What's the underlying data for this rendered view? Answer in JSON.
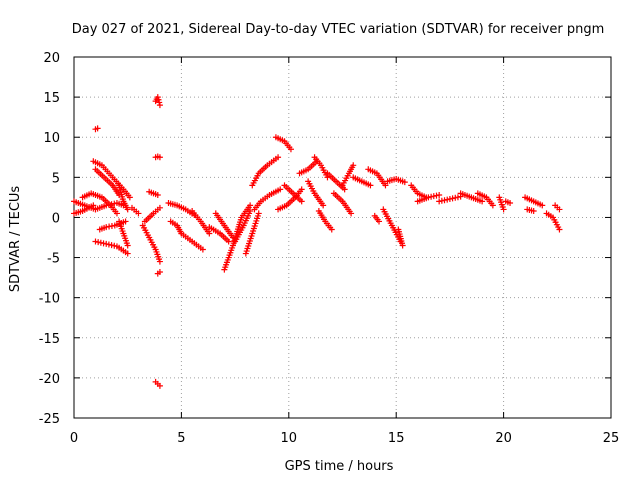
{
  "chart_data": {
    "type": "scatter",
    "title": "Day 027 of 2021, Sidereal Day-to-day VTEC variation (SDTVAR) for receiver pngm",
    "xlabel": "GPS time / hours",
    "ylabel": "SDTVAR / TECUs",
    "xlim": [
      0,
      25
    ],
    "ylim": [
      -25,
      20
    ],
    "xticks": [
      "0",
      "5",
      "10",
      "15",
      "20",
      "25"
    ],
    "yticks": [
      "20",
      "15",
      "10",
      "5",
      "0",
      "-5",
      "-10",
      "-15",
      "-20",
      "-25"
    ],
    "grid": true,
    "marker": "+",
    "color": "#ff0000",
    "tracks": [
      {
        "x": [
          0.0,
          0.5,
          1.0
        ],
        "y": [
          2.0,
          1.5,
          1.0
        ]
      },
      {
        "x": [
          0.0,
          0.4,
          0.9
        ],
        "y": [
          0.5,
          0.8,
          1.5
        ]
      },
      {
        "x": [
          0.4,
          0.8,
          1.3,
          1.7,
          2.0
        ],
        "y": [
          2.5,
          3.0,
          2.5,
          1.5,
          0.5
        ]
      },
      {
        "x": [
          1.0,
          1.5,
          2.0,
          2.3
        ],
        "y": [
          1.0,
          1.5,
          1.8,
          1.5
        ]
      },
      {
        "x": [
          0.9,
          1.3,
          1.8,
          2.3,
          2.6
        ],
        "y": [
          7.0,
          6.5,
          5.0,
          3.5,
          2.5
        ]
      },
      {
        "x": [
          1.0,
          1.4,
          1.8,
          2.1
        ],
        "y": [
          6.0,
          5.0,
          4.0,
          2.8
        ]
      },
      {
        "x": [
          1.2,
          1.5,
          1.9,
          2.4
        ],
        "y": [
          -1.5,
          -1.2,
          -1.0,
          -0.5
        ]
      },
      {
        "x": [
          1.0,
          1.5,
          2.0,
          2.5
        ],
        "y": [
          -3.0,
          -3.3,
          -3.6,
          -4.5
        ]
      },
      {
        "x": [
          2.1,
          2.3,
          2.5
        ],
        "y": [
          -0.5,
          -2.0,
          -3.5
        ]
      },
      {
        "x": [
          2.1,
          2.3,
          2.5
        ],
        "y": [
          4.0,
          2.0,
          1.0
        ]
      },
      {
        "x": [
          2.7,
          3.0
        ],
        "y": [
          1.2,
          0.5
        ]
      },
      {
        "x": [
          3.5,
          3.9
        ],
        "y": [
          3.2,
          2.8
        ]
      },
      {
        "x": [
          3.2,
          3.5,
          3.8,
          4.0
        ],
        "y": [
          -1.0,
          -2.5,
          -4.0,
          -5.5
        ]
      },
      {
        "x": [
          3.3,
          3.7,
          4.0
        ],
        "y": [
          -0.5,
          0.5,
          1.2
        ]
      },
      {
        "x": [
          3.8,
          3.9,
          4.0
        ],
        "y": [
          14.5,
          15.0,
          14.0
        ]
      },
      {
        "x": [
          3.8,
          3.9,
          4.0
        ],
        "y": [
          7.5,
          7.6,
          7.5
        ]
      },
      {
        "x": [
          3.9,
          4.0
        ],
        "y": [
          -7.0,
          -6.8
        ]
      },
      {
        "x": [
          3.8,
          4.0
        ],
        "y": [
          -20.5,
          -21.0
        ]
      },
      {
        "x": [
          1.0,
          1.1
        ],
        "y": [
          11.0,
          11.1
        ]
      },
      {
        "x": [
          4.4,
          4.8,
          5.2,
          5.6
        ],
        "y": [
          1.8,
          1.5,
          1.0,
          0.3
        ]
      },
      {
        "x": [
          4.5,
          4.8,
          5.0
        ],
        "y": [
          -0.5,
          -1.0,
          -2.0
        ]
      },
      {
        "x": [
          5.0,
          5.5,
          6.0
        ],
        "y": [
          -2.0,
          -3.0,
          -4.0
        ]
      },
      {
        "x": [
          5.5,
          5.9,
          6.3
        ],
        "y": [
          0.8,
          -0.5,
          -2.0
        ]
      },
      {
        "x": [
          6.3,
          6.8,
          7.2
        ],
        "y": [
          -1.2,
          -2.0,
          -3.0
        ]
      },
      {
        "x": [
          6.6,
          7.0,
          7.4
        ],
        "y": [
          0.5,
          -1.0,
          -2.5
        ]
      },
      {
        "x": [
          7.0,
          7.4,
          7.8,
          8.2
        ],
        "y": [
          -6.5,
          -3.5,
          0.0,
          1.5
        ]
      },
      {
        "x": [
          7.5,
          7.9,
          8.2
        ],
        "y": [
          -3.0,
          -1.0,
          0.8
        ]
      },
      {
        "x": [
          8.0,
          8.3,
          8.6
        ],
        "y": [
          -4.5,
          -2.0,
          0.5
        ]
      },
      {
        "x": [
          8.3,
          8.6,
          9.0,
          9.5
        ],
        "y": [
          4.0,
          5.5,
          6.5,
          7.5
        ]
      },
      {
        "x": [
          8.4,
          8.7,
          9.1,
          9.6
        ],
        "y": [
          1.0,
          2.0,
          2.8,
          3.5
        ]
      },
      {
        "x": [
          9.4,
          9.8,
          10.1
        ],
        "y": [
          10.0,
          9.5,
          8.5
        ]
      },
      {
        "x": [
          9.5,
          9.9,
          10.3,
          10.6
        ],
        "y": [
          1.0,
          1.5,
          2.5,
          3.5
        ]
      },
      {
        "x": [
          10.5,
          10.9,
          11.3
        ],
        "y": [
          5.5,
          6.0,
          7.0
        ]
      },
      {
        "x": [
          9.8,
          10.2,
          10.6
        ],
        "y": [
          4.0,
          3.0,
          2.0
        ]
      },
      {
        "x": [
          10.9,
          11.2,
          11.6
        ],
        "y": [
          4.5,
          3.0,
          1.5
        ]
      },
      {
        "x": [
          11.2,
          11.5,
          11.8
        ],
        "y": [
          7.5,
          6.5,
          5.0
        ]
      },
      {
        "x": [
          11.4,
          11.7,
          12.0
        ],
        "y": [
          0.8,
          -0.5,
          -1.5
        ]
      },
      {
        "x": [
          11.8,
          12.2,
          12.6
        ],
        "y": [
          5.5,
          4.5,
          3.5
        ]
      },
      {
        "x": [
          12.1,
          12.5,
          12.9
        ],
        "y": [
          3.0,
          2.0,
          0.5
        ]
      },
      {
        "x": [
          12.5,
          12.8,
          13.0
        ],
        "y": [
          4.0,
          5.5,
          6.5
        ]
      },
      {
        "x": [
          13.0,
          13.4,
          13.8
        ],
        "y": [
          5.0,
          4.5,
          4.0
        ]
      },
      {
        "x": [
          13.7,
          14.1,
          14.5
        ],
        "y": [
          6.0,
          5.5,
          4.0
        ]
      },
      {
        "x": [
          14.0,
          14.2
        ],
        "y": [
          0.2,
          -0.5
        ]
      },
      {
        "x": [
          14.4,
          14.8,
          15.2
        ],
        "y": [
          1.0,
          -1.0,
          -3.0
        ]
      },
      {
        "x": [
          14.6,
          15.0,
          15.4
        ],
        "y": [
          4.5,
          4.8,
          4.4
        ]
      },
      {
        "x": [
          15.1,
          15.3
        ],
        "y": [
          -1.5,
          -3.5
        ]
      },
      {
        "x": [
          15.7,
          16.0,
          16.4
        ],
        "y": [
          4.0,
          3.0,
          2.5
        ]
      },
      {
        "x": [
          16.0,
          16.5,
          17.0
        ],
        "y": [
          2.0,
          2.5,
          2.8
        ]
      },
      {
        "x": [
          17.0,
          17.5,
          18.0
        ],
        "y": [
          2.0,
          2.3,
          2.6
        ]
      },
      {
        "x": [
          18.0,
          18.5,
          19.0
        ],
        "y": [
          3.0,
          2.5,
          2.0
        ]
      },
      {
        "x": [
          18.8,
          19.2,
          19.5
        ],
        "y": [
          3.0,
          2.5,
          1.5
        ]
      },
      {
        "x": [
          19.8,
          20.0
        ],
        "y": [
          2.5,
          1.0
        ]
      },
      {
        "x": [
          20.1,
          20.3
        ],
        "y": [
          2.0,
          1.8
        ]
      },
      {
        "x": [
          21.0,
          21.4,
          21.8
        ],
        "y": [
          2.5,
          2.0,
          1.5
        ]
      },
      {
        "x": [
          21.1,
          21.4
        ],
        "y": [
          1.0,
          0.8
        ]
      },
      {
        "x": [
          22.0,
          22.3,
          22.6
        ],
        "y": [
          0.5,
          0.0,
          -1.5
        ]
      },
      {
        "x": [
          22.4,
          22.6
        ],
        "y": [
          1.5,
          1.0
        ]
      }
    ]
  }
}
